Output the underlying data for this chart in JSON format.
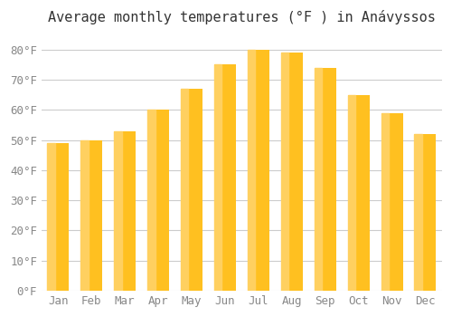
{
  "title": "Average monthly temperatures (°F ) in Anávyssos",
  "months": [
    "Jan",
    "Feb",
    "Mar",
    "Apr",
    "May",
    "Jun",
    "Jul",
    "Aug",
    "Sep",
    "Oct",
    "Nov",
    "Dec"
  ],
  "values": [
    49,
    50,
    53,
    60,
    67,
    75,
    80,
    79,
    74,
    65,
    59,
    52
  ],
  "bar_color_top": "#FFC020",
  "bar_color_bottom": "#FFD060",
  "background_color": "#FFFFFF",
  "grid_color": "#CCCCCC",
  "yticks": [
    0,
    10,
    20,
    30,
    40,
    50,
    60,
    70,
    80
  ],
  "ylim": [
    0,
    85
  ],
  "title_fontsize": 11,
  "tick_fontsize": 9,
  "font_color": "#888888"
}
